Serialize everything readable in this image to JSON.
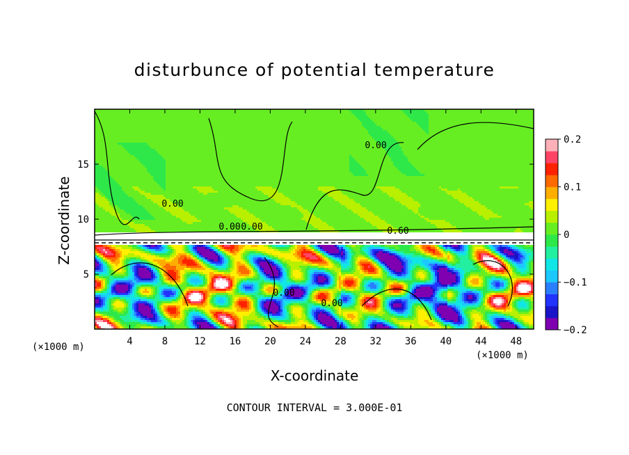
{
  "chart_data": {
    "type": "heatmap",
    "title": "disturbunce of potential temperature",
    "xlabel": "X-coordinate",
    "ylabel": "Z-coordinate",
    "x_unit_left": "(×1000 m)",
    "x_unit_right": "(×1000 m)",
    "xlim": [
      0,
      50
    ],
    "ylim": [
      0,
      20
    ],
    "x_ticks": [
      4,
      8,
      12,
      16,
      20,
      24,
      28,
      32,
      36,
      40,
      44,
      48
    ],
    "y_ticks": [
      5,
      10,
      15
    ],
    "colorbar": {
      "min": -0.2,
      "max": 0.2,
      "ticks": [
        0.2,
        0.1,
        0,
        -0.1,
        -0.2
      ],
      "tick_labels": [
        "0.2",
        "0.1",
        "0",
        "−0.1",
        "−0.2"
      ],
      "colors": [
        "#7f00b0",
        "#1a14c8",
        "#2233ff",
        "#2a7fff",
        "#1cc8ff",
        "#11e6e6",
        "#22f0a0",
        "#2ee84a",
        "#66ee22",
        "#b8f000",
        "#ffef00",
        "#ffae00",
        "#ff6a00",
        "#ff2200",
        "#ff4466",
        "#ffb0b8"
      ]
    },
    "contour_labels": [
      "0.00",
      "0.00",
      "0.60",
      "0.00",
      "0.00",
      "0.00",
      "0.00"
    ],
    "grid": false
  },
  "footer": "CONTOUR INTERVAL = 3.000E-01"
}
